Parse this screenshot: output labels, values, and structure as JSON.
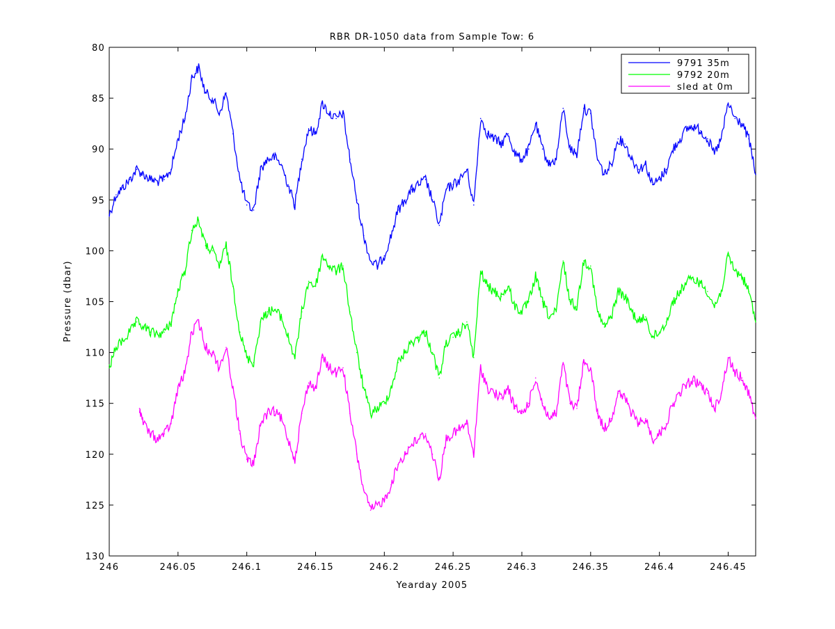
{
  "chart_data": {
    "type": "line",
    "title": "RBR DR-1050 data from Sample Tow: 6",
    "xlabel": "Yearday 2005",
    "ylabel": "Pressure (dbar)",
    "xlim": [
      246.0,
      246.47
    ],
    "ylim": [
      80,
      130
    ],
    "y_reversed": true,
    "x_ticks": [
      246,
      246.05,
      246.1,
      246.15,
      246.2,
      246.25,
      246.3,
      246.35,
      246.4,
      246.45
    ],
    "x_tick_labels": [
      "246",
      "246.05",
      "246.1",
      "246.15",
      "246.2",
      "246.25",
      "246.3",
      "246.35",
      "246.4",
      "246.45"
    ],
    "y_ticks": [
      80,
      85,
      90,
      95,
      100,
      105,
      110,
      115,
      120,
      125,
      130
    ],
    "y_tick_labels": [
      "80",
      "85",
      "90",
      "95",
      "100",
      "105",
      "110",
      "115",
      "120",
      "125",
      "130"
    ],
    "grid": false,
    "legend_position": "top-right",
    "series": [
      {
        "name": "9791 35m",
        "color": "#0000ff",
        "x": [
          246.0,
          246.005,
          246.01,
          246.015,
          246.02,
          246.025,
          246.03,
          246.035,
          246.04,
          246.045,
          246.05,
          246.055,
          246.06,
          246.065,
          246.07,
          246.075,
          246.08,
          246.085,
          246.09,
          246.095,
          246.1,
          246.105,
          246.11,
          246.115,
          246.12,
          246.125,
          246.13,
          246.135,
          246.14,
          246.145,
          246.15,
          246.155,
          246.16,
          246.165,
          246.17,
          246.175,
          246.18,
          246.185,
          246.19,
          246.195,
          246.2,
          246.205,
          246.21,
          246.215,
          246.22,
          246.225,
          246.23,
          246.235,
          246.24,
          246.245,
          246.25,
          246.255,
          246.26,
          246.265,
          246.27,
          246.275,
          246.28,
          246.285,
          246.29,
          246.295,
          246.3,
          246.305,
          246.31,
          246.315,
          246.32,
          246.325,
          246.33,
          246.335,
          246.34,
          246.345,
          246.35,
          246.355,
          246.36,
          246.365,
          246.37,
          246.375,
          246.38,
          246.385,
          246.39,
          246.395,
          246.4,
          246.405,
          246.41,
          246.415,
          246.42,
          246.425,
          246.43,
          246.435,
          246.44,
          246.445,
          246.45,
          246.455,
          246.46,
          246.465,
          246.47
        ],
        "y": [
          96.5,
          94.5,
          93.8,
          93.0,
          92.0,
          92.5,
          93.0,
          93.2,
          93.0,
          92.0,
          89.0,
          87.0,
          83.0,
          82.0,
          84.5,
          85.0,
          86.5,
          84.5,
          88.5,
          93.0,
          95.5,
          96.0,
          92.0,
          91.0,
          90.8,
          91.5,
          93.5,
          95.5,
          91.0,
          88.0,
          88.5,
          85.5,
          86.5,
          87.0,
          86.5,
          91.0,
          95.0,
          98.5,
          101.0,
          101.5,
          100.5,
          98.5,
          96.0,
          95.0,
          94.0,
          93.5,
          93.0,
          95.0,
          97.5,
          94.0,
          93.5,
          93.0,
          92.0,
          95.5,
          87.0,
          88.5,
          89.0,
          89.5,
          88.5,
          90.5,
          91.0,
          90.0,
          87.5,
          90.0,
          91.5,
          91.0,
          86.0,
          90.0,
          90.5,
          86.0,
          86.5,
          91.0,
          92.5,
          91.5,
          89.0,
          89.5,
          91.0,
          92.0,
          91.5,
          93.5,
          93.0,
          92.0,
          90.0,
          89.0,
          88.0,
          87.8,
          88.2,
          89.0,
          90.5,
          89.0,
          85.5,
          87.0,
          87.5,
          89.0,
          92.5
        ]
      },
      {
        "name": "9792 20m",
        "color": "#00ff00",
        "x": [
          246.0,
          246.005,
          246.01,
          246.015,
          246.02,
          246.025,
          246.03,
          246.035,
          246.04,
          246.045,
          246.05,
          246.055,
          246.06,
          246.065,
          246.07,
          246.075,
          246.08,
          246.085,
          246.09,
          246.095,
          246.1,
          246.105,
          246.11,
          246.115,
          246.12,
          246.125,
          246.13,
          246.135,
          246.14,
          246.145,
          246.15,
          246.155,
          246.16,
          246.165,
          246.17,
          246.175,
          246.18,
          246.185,
          246.19,
          246.195,
          246.2,
          246.205,
          246.21,
          246.215,
          246.22,
          246.225,
          246.23,
          246.235,
          246.24,
          246.245,
          246.25,
          246.255,
          246.26,
          246.265,
          246.27,
          246.275,
          246.28,
          246.285,
          246.29,
          246.295,
          246.3,
          246.305,
          246.31,
          246.315,
          246.32,
          246.325,
          246.33,
          246.335,
          246.34,
          246.345,
          246.35,
          246.355,
          246.36,
          246.365,
          246.37,
          246.375,
          246.38,
          246.385,
          246.39,
          246.395,
          246.4,
          246.405,
          246.41,
          246.415,
          246.42,
          246.425,
          246.43,
          246.435,
          246.44,
          246.445,
          246.45,
          246.455,
          246.46,
          246.465,
          246.47
        ],
        "y": [
          111.5,
          109.5,
          108.8,
          108.0,
          107.0,
          107.5,
          108.0,
          108.2,
          108.0,
          107.0,
          104.0,
          102.0,
          98.0,
          97.0,
          99.5,
          100.0,
          101.5,
          99.5,
          103.5,
          108.0,
          110.5,
          111.0,
          107.0,
          106.0,
          105.8,
          106.5,
          108.5,
          110.5,
          106.0,
          103.0,
          103.5,
          100.5,
          101.5,
          102.0,
          101.5,
          106.0,
          110.0,
          113.5,
          116.0,
          115.5,
          115.0,
          113.5,
          111.0,
          110.0,
          109.0,
          108.5,
          108.0,
          110.0,
          112.5,
          109.0,
          108.5,
          108.0,
          107.0,
          110.5,
          102.0,
          103.5,
          104.0,
          104.5,
          103.5,
          105.5,
          106.0,
          105.0,
          102.5,
          105.0,
          106.5,
          106.0,
          101.0,
          105.0,
          105.5,
          101.0,
          101.5,
          106.0,
          107.5,
          106.5,
          104.0,
          104.5,
          106.0,
          107.0,
          106.5,
          108.5,
          108.0,
          107.0,
          105.0,
          104.0,
          103.0,
          102.8,
          103.2,
          104.0,
          105.5,
          104.0,
          100.5,
          102.0,
          102.5,
          104.0,
          107.0
        ]
      },
      {
        "name": "sled at 0m",
        "color": "#ff00ff",
        "x": [
          246.022,
          246.025,
          246.03,
          246.035,
          246.04,
          246.045,
          246.05,
          246.055,
          246.06,
          246.065,
          246.07,
          246.075,
          246.08,
          246.085,
          246.09,
          246.095,
          246.1,
          246.105,
          246.11,
          246.115,
          246.12,
          246.125,
          246.13,
          246.135,
          246.14,
          246.145,
          246.15,
          246.155,
          246.16,
          246.165,
          246.17,
          246.175,
          246.18,
          246.185,
          246.19,
          246.195,
          246.2,
          246.205,
          246.21,
          246.215,
          246.22,
          246.225,
          246.23,
          246.235,
          246.24,
          246.245,
          246.25,
          246.255,
          246.26,
          246.265,
          246.27,
          246.275,
          246.28,
          246.285,
          246.29,
          246.295,
          246.3,
          246.305,
          246.31,
          246.315,
          246.32,
          246.325,
          246.33,
          246.335,
          246.34,
          246.345,
          246.35,
          246.355,
          246.36,
          246.365,
          246.37,
          246.375,
          246.38,
          246.385,
          246.39,
          246.395,
          246.4,
          246.405,
          246.41,
          246.415,
          246.42,
          246.425,
          246.43,
          246.435,
          246.44,
          246.445,
          246.45,
          246.455,
          246.46,
          246.465,
          246.47
        ],
        "y": [
          115.5,
          117.0,
          118.0,
          118.5,
          118.0,
          117.0,
          113.5,
          112.0,
          108.0,
          107.0,
          109.5,
          110.0,
          111.5,
          109.5,
          113.5,
          118.0,
          120.5,
          121.0,
          117.0,
          116.0,
          115.8,
          116.5,
          118.5,
          120.5,
          116.0,
          113.0,
          113.5,
          110.5,
          111.5,
          112.0,
          111.5,
          116.0,
          120.0,
          123.5,
          125.5,
          125.0,
          124.5,
          123.0,
          121.0,
          120.0,
          119.0,
          118.5,
          118.0,
          120.0,
          122.5,
          118.5,
          118.0,
          117.5,
          117.0,
          120.0,
          111.5,
          113.5,
          114.0,
          114.5,
          113.5,
          115.5,
          116.0,
          115.0,
          112.5,
          115.0,
          116.5,
          116.0,
          111.0,
          115.0,
          115.5,
          111.0,
          111.5,
          116.0,
          117.5,
          116.5,
          114.0,
          114.5,
          116.0,
          117.0,
          116.5,
          118.5,
          118.0,
          117.0,
          115.0,
          114.0,
          113.0,
          112.8,
          113.2,
          114.0,
          115.5,
          114.0,
          110.5,
          112.0,
          112.5,
          114.0,
          116.5
        ]
      }
    ]
  }
}
